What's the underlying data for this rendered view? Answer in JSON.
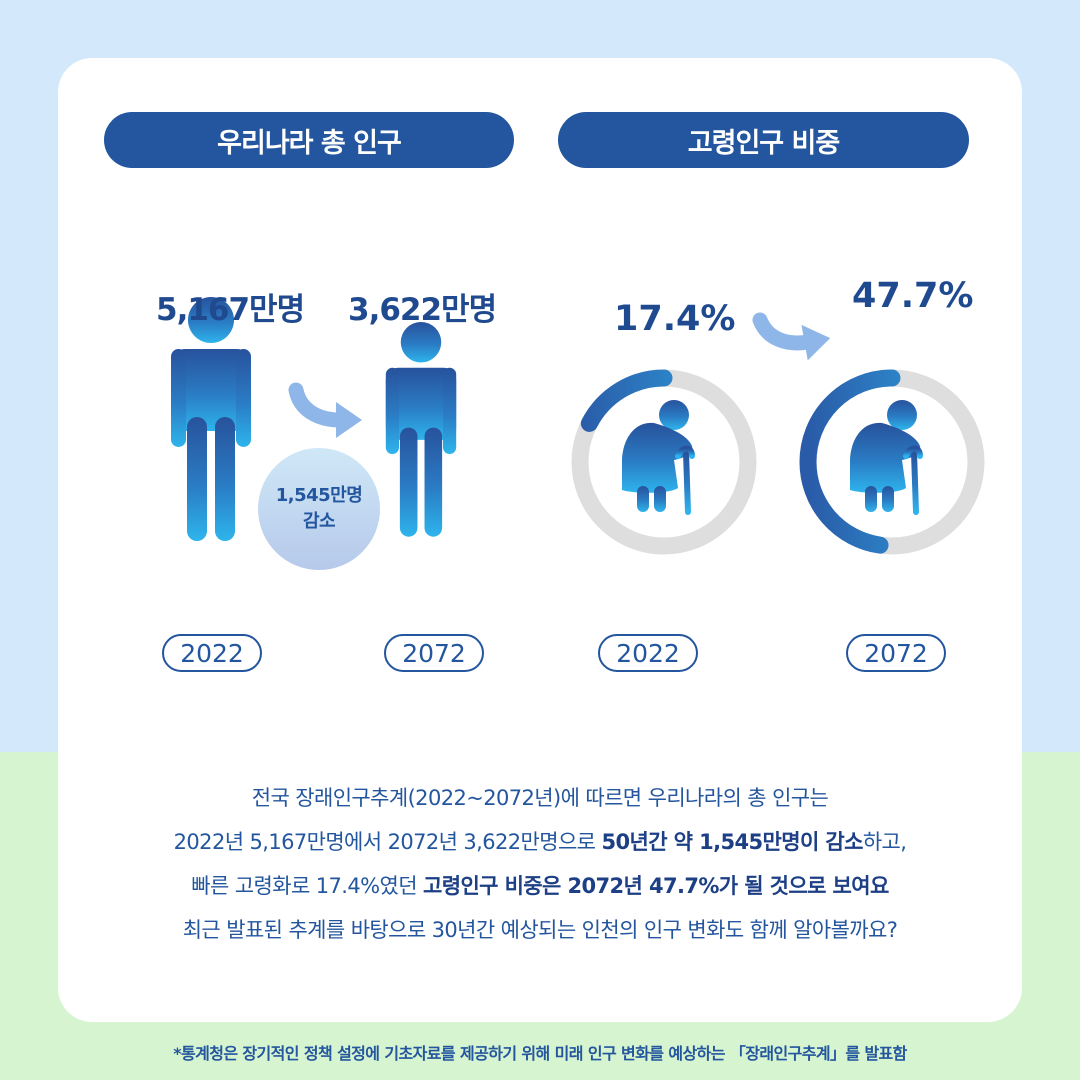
{
  "panels": {
    "population": {
      "title": "우리나라 총 인구",
      "value_2022": "5,167만명",
      "value_2072": "3,622만명",
      "decrease_line1": "1,545만명",
      "decrease_line2": "감소",
      "year_a": "2022",
      "year_b": "2072"
    },
    "elderly": {
      "title": "고령인구 비중",
      "value_2022": "17.4%",
      "value_2072": "47.7%",
      "ratio_2022": 0.174,
      "ratio_2072": 0.477,
      "year_a": "2022",
      "year_b": "2072"
    }
  },
  "description": {
    "line1": "전국 장래인구추계(2022~2072년)에 따르면 우리나라의 총 인구는",
    "line2_a": "2022년 5,167만명에서 2072년 3,622만명으로 ",
    "line2_b": "50년간 약 1,545만명이 감소",
    "line2_c": "하고,",
    "line3_a": "빠른 고령화로 17.4%였던 ",
    "line3_b": "고령인구 비중은 2072년 47.7%가 될 것으로 보여요",
    "line4": "최근 발표된 추계를 바탕으로 30년간 예상되는 인천의 인구 변화도 함께 알아볼까요?"
  },
  "footnote": "*통계청은 장기적인 정책 설정에 기초자료를 제공하기 위해 미래 인구 변화를 예상하는 「장래인구추계」를 발표함",
  "colors": {
    "primary": "#23569e",
    "background_top": "#d3e8fb",
    "background_bottom": "#d6f4cf",
    "ring_track": "#dedede",
    "arrow": "#8fb6e8"
  },
  "icons": {
    "person": "person-icon",
    "elderly": "elderly-person-with-cane-icon",
    "arrow": "curved-arrow-icon"
  }
}
